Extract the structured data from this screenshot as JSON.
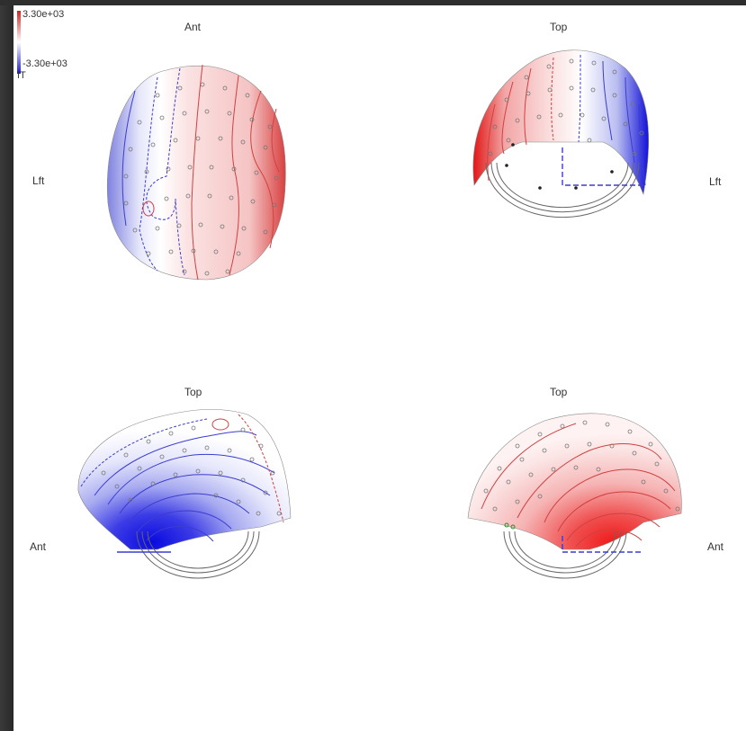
{
  "colorbar": {
    "max_label": "3.30e+03",
    "min_label": "-3.30e+03",
    "unit": "fT",
    "max_color": "#d42020",
    "min_color": "#1a1ad4"
  },
  "panels": {
    "top_left": {
      "label_top": "Ant",
      "label_side": "Lft"
    },
    "top_right": {
      "label_top": "Top",
      "label_side": "Lft"
    },
    "bottom_left": {
      "label_top": "Top",
      "label_side": "Ant"
    },
    "bottom_right": {
      "label_top": "Top",
      "label_side": "Ant"
    }
  }
}
